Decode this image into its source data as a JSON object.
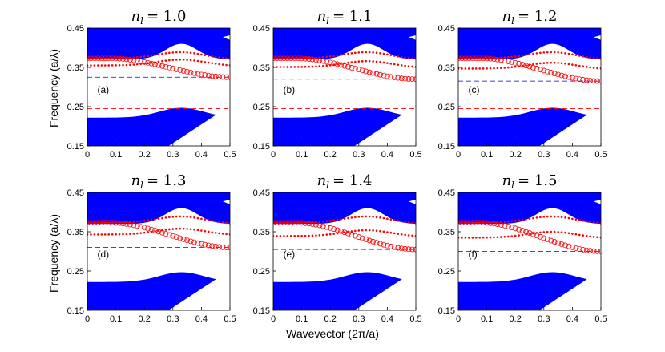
{
  "chart_data": {
    "type": "scatter",
    "layout": "grid 2x3 of band-structure plots",
    "xlabel": "Wavevector (2π/a)",
    "ylabel": "Frequency (a/λ)",
    "xlim": [
      0,
      0.5
    ],
    "ylim": [
      0.15,
      0.45
    ],
    "xticks": [
      "0",
      "0.1",
      "0.2",
      "0.3",
      "0.4",
      "0.5"
    ],
    "yticks": [
      "0.15",
      "0.25",
      "0.35",
      "0.45"
    ],
    "colors": {
      "band": "#0000ff",
      "mode": "#ff0000",
      "blue_line": "#0000ff",
      "red_line": "#ff0000"
    },
    "panels": [
      {
        "title_var": "n",
        "title_sub": "l",
        "title_value": "= 1.0",
        "label": "(a)",
        "red_dashed": 0.245,
        "blue_dashed": 0.325,
        "guided_mode_end": 0.325
      },
      {
        "title_var": "n",
        "title_sub": "l",
        "title_value": "= 1.1",
        "label": "(b)",
        "red_dashed": 0.245,
        "blue_dashed": 0.32,
        "guided_mode_end": 0.32
      },
      {
        "title_var": "n",
        "title_sub": "l",
        "title_value": "= 1.2",
        "label": "(c)",
        "red_dashed": 0.245,
        "blue_dashed": 0.315,
        "guided_mode_end": 0.315
      },
      {
        "title_var": "n",
        "title_sub": "l",
        "title_value": "= 1.3",
        "label": "(d)",
        "red_dashed": 0.245,
        "blue_dashed": 0.31,
        "guided_mode_end": 0.31
      },
      {
        "title_var": "n",
        "title_sub": "l",
        "title_value": "= 1.4",
        "label": "(e)",
        "red_dashed": 0.245,
        "blue_dashed": 0.305,
        "guided_mode_end": 0.305
      },
      {
        "title_var": "n",
        "title_sub": "l",
        "title_value": "= 1.5",
        "label": "(f)",
        "red_dashed": 0.245,
        "blue_dashed": 0.3,
        "guided_mode_end": 0.3
      }
    ]
  }
}
